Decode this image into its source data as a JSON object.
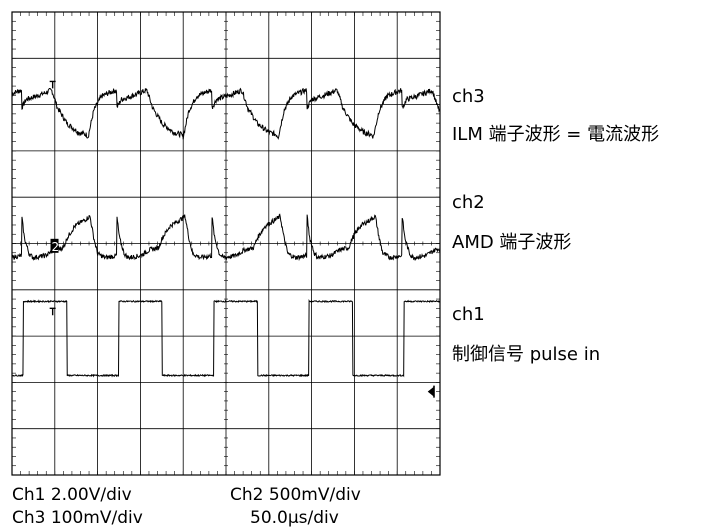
{
  "chart_data": {
    "type": "line",
    "grid": true,
    "series": [
      {
        "key": "ch3",
        "name": "ch3",
        "description": "ILM 端子波形 = 電流波形",
        "period_us": 100,
        "points": [
          [
            0,
            0.55
          ],
          [
            5,
            0.75
          ],
          [
            15,
            0.82
          ],
          [
            25,
            0.9
          ],
          [
            30,
            0.95
          ],
          [
            32,
            0.95
          ],
          [
            38,
            0.55
          ],
          [
            48,
            0.2
          ],
          [
            60,
            0.0
          ],
          [
            68,
            -0.05
          ],
          [
            70,
            -0.1
          ],
          [
            76,
            0.5
          ],
          [
            84,
            0.82
          ],
          [
            92,
            0.9
          ],
          [
            98,
            0.95
          ],
          [
            100,
            0.95
          ]
        ]
      },
      {
        "key": "ch2",
        "name": "ch2",
        "description": "AMD 端子波形",
        "period_us": 100,
        "points": [
          [
            0,
            0.8
          ],
          [
            3,
            0.2
          ],
          [
            8,
            -0.2
          ],
          [
            12,
            -0.3
          ],
          [
            25,
            -0.25
          ],
          [
            35,
            -0.1
          ],
          [
            44,
            -0.05
          ],
          [
            48,
            0.2
          ],
          [
            56,
            0.5
          ],
          [
            66,
            0.65
          ],
          [
            72,
            0.75
          ],
          [
            76,
            0.2
          ],
          [
            80,
            -0.2
          ],
          [
            88,
            -0.3
          ],
          [
            100,
            -0.25
          ]
        ]
      },
      {
        "key": "ch1",
        "name": "ch1",
        "description": "制御信号 pulse in",
        "period_us": 100,
        "points": [
          [
            0,
            -1.2
          ],
          [
            2,
            -1.2
          ],
          [
            2,
            2.0
          ],
          [
            48,
            2.0
          ],
          [
            48,
            -1.2
          ],
          [
            100,
            -1.2
          ]
        ]
      }
    ]
  },
  "labels": {
    "ch3_name": "ch3",
    "ch3_desc": "ILM 端子波形 = 電流波形",
    "ch2_name": "ch2",
    "ch2_desc": "AMD 端子波形",
    "ch1_name": "ch1",
    "ch1_desc": "制御信号 pulse in"
  },
  "settings": {
    "ch1": "Ch1  2.00V/div",
    "ch2": "Ch2  500mV/div",
    "ch3": "Ch3  100mV/div",
    "timebase": "50.0µs/div"
  },
  "markers": {
    "ch2_ground": "2"
  },
  "colors": {
    "trace": "#000000",
    "grid": "#000000"
  }
}
